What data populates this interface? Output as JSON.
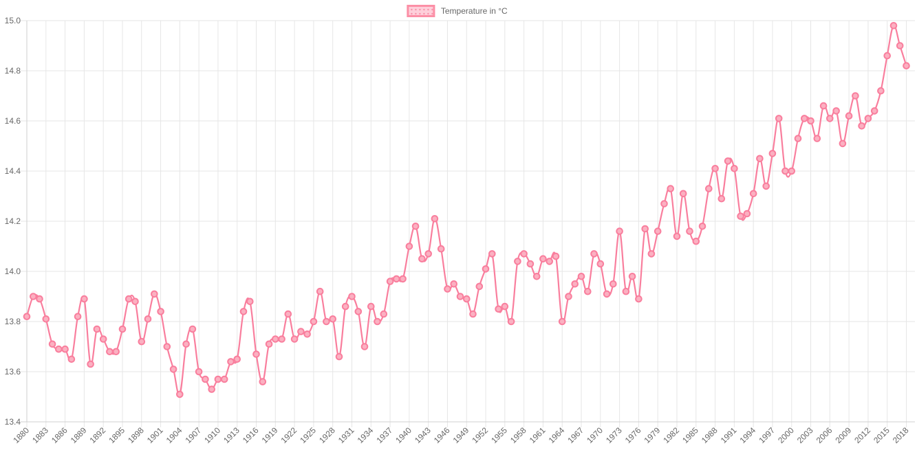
{
  "legend": {
    "label": "Temperature in °C"
  },
  "colors": {
    "line": "#f97e9d",
    "point_fill": "#fbb0c1",
    "point_stroke": "#f97e9d",
    "grid": "#e6e6e6",
    "axis": "#cfcfcf",
    "tick_text": "#666666",
    "legend_border": "#fc8fa6",
    "legend_fill": "#fecfda",
    "legend_dot": "#f893ab"
  },
  "chart_data": {
    "type": "line",
    "title": "",
    "xlabel": "",
    "ylabel": "",
    "legend_position": "top",
    "grid": true,
    "line_tension": 0.4,
    "ylim": [
      13.4,
      15.0
    ],
    "ytick_labels": [
      "15.0",
      "14.8",
      "14.6",
      "14.4",
      "14.2",
      "14.0",
      "13.8",
      "13.6",
      "13.4"
    ],
    "xtick_labels": [
      1880,
      1883,
      1886,
      1889,
      1892,
      1895,
      1898,
      1901,
      1904,
      1907,
      1910,
      1913,
      1916,
      1919,
      1922,
      1925,
      1928,
      1931,
      1934,
      1937,
      1940,
      1943,
      1946,
      1949,
      1952,
      1955,
      1958,
      1961,
      1964,
      1967,
      1970,
      1973,
      1976,
      1979,
      1982,
      1985,
      1988,
      1991,
      1994,
      1997,
      2000,
      2003,
      2006,
      2009,
      2012,
      2015,
      2018
    ],
    "x": [
      1880,
      1881,
      1882,
      1883,
      1884,
      1885,
      1886,
      1887,
      1888,
      1889,
      1890,
      1891,
      1892,
      1893,
      1894,
      1895,
      1896,
      1897,
      1898,
      1899,
      1900,
      1901,
      1902,
      1903,
      1904,
      1905,
      1906,
      1907,
      1908,
      1909,
      1910,
      1911,
      1912,
      1913,
      1914,
      1915,
      1916,
      1917,
      1918,
      1919,
      1920,
      1921,
      1922,
      1923,
      1924,
      1925,
      1926,
      1927,
      1928,
      1929,
      1930,
      1931,
      1932,
      1933,
      1934,
      1935,
      1936,
      1937,
      1938,
      1939,
      1940,
      1941,
      1942,
      1943,
      1944,
      1945,
      1946,
      1947,
      1948,
      1949,
      1950,
      1951,
      1952,
      1953,
      1954,
      1955,
      1956,
      1957,
      1958,
      1959,
      1960,
      1961,
      1962,
      1963,
      1964,
      1965,
      1966,
      1967,
      1968,
      1969,
      1970,
      1971,
      1972,
      1973,
      1974,
      1975,
      1976,
      1977,
      1978,
      1979,
      1980,
      1981,
      1982,
      1983,
      1984,
      1985,
      1986,
      1987,
      1988,
      1989,
      1990,
      1991,
      1992,
      1993,
      1994,
      1995,
      1996,
      1997,
      1998,
      1999,
      2000,
      2001,
      2002,
      2003,
      2004,
      2005,
      2006,
      2007,
      2008,
      2009,
      2010,
      2011,
      2012,
      2013,
      2014,
      2015,
      2016,
      2017,
      2018
    ],
    "series": [
      {
        "name": "Temperature in °C",
        "values": [
          13.82,
          13.9,
          13.89,
          13.81,
          13.71,
          13.69,
          13.69,
          13.65,
          13.82,
          13.89,
          13.63,
          13.77,
          13.73,
          13.68,
          13.68,
          13.77,
          13.89,
          13.88,
          13.72,
          13.81,
          13.91,
          13.84,
          13.7,
          13.61,
          13.51,
          13.71,
          13.77,
          13.6,
          13.57,
          13.53,
          13.57,
          13.57,
          13.64,
          13.65,
          13.84,
          13.88,
          13.67,
          13.56,
          13.71,
          13.73,
          13.73,
          13.83,
          13.73,
          13.76,
          13.75,
          13.8,
          13.92,
          13.8,
          13.81,
          13.66,
          13.86,
          13.9,
          13.84,
          13.7,
          13.86,
          13.8,
          13.83,
          13.96,
          13.97,
          13.97,
          14.1,
          14.18,
          14.05,
          14.07,
          14.21,
          14.09,
          13.93,
          13.95,
          13.9,
          13.89,
          13.83,
          13.94,
          14.01,
          14.07,
          13.85,
          13.86,
          13.8,
          14.04,
          14.07,
          14.03,
          13.98,
          14.05,
          14.04,
          14.06,
          13.8,
          13.9,
          13.95,
          13.98,
          13.92,
          14.07,
          14.03,
          13.91,
          13.95,
          14.16,
          13.92,
          13.98,
          13.89,
          14.17,
          14.07,
          14.16,
          14.27,
          14.33,
          14.14,
          14.31,
          14.16,
          14.12,
          14.18,
          14.33,
          14.41,
          14.29,
          14.44,
          14.41,
          14.22,
          14.23,
          14.31,
          14.45,
          14.34,
          14.47,
          14.61,
          14.4,
          14.4,
          14.53,
          14.61,
          14.6,
          14.53,
          14.66,
          14.61,
          14.64,
          14.51,
          14.62,
          14.7,
          14.58,
          14.61,
          14.64,
          14.72,
          14.86,
          14.98,
          14.9,
          14.82
        ]
      }
    ]
  }
}
